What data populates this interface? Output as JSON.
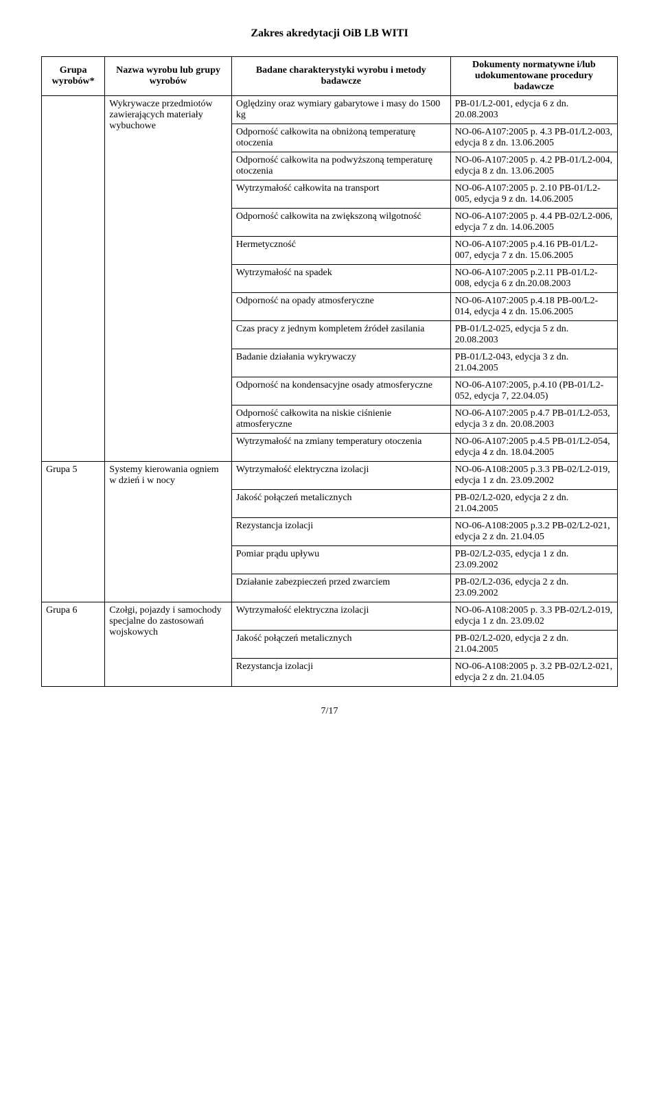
{
  "header": "Zakres akredytacji OiB LB WITI",
  "footer": "7/17",
  "columns": {
    "grupa": "Grupa wyrobów*",
    "nazwa": "Nazwa wyrobu lub grupy wyrobów",
    "badane": "Badane charakterystyki wyrobu i metody badawcze",
    "dok": "Dokumenty normatywne i/lub udokumentowane procedury badawcze"
  },
  "sections": [
    {
      "grupa": "",
      "nazwa": "Wykrywacze przedmiotów zawierających materiały wybuchowe",
      "rows": [
        {
          "left": "Oględziny oraz wymiary gabarytowe i masy do 1500 kg",
          "right": "PB-01/L2-001, edycja 6 z dn. 20.08.2003"
        },
        {
          "left": "Odporność całkowita na obniżoną temperaturę otoczenia",
          "right": "NO-06-A107:2005 p. 4.3 PB-01/L2-003, edycja 8 z dn. 13.06.2005"
        },
        {
          "left": "Odporność całkowita na podwyższoną temperaturę otoczenia",
          "right": "NO-06-A107:2005 p. 4.2 PB-01/L2-004, edycja 8 z dn. 13.06.2005"
        },
        {
          "left": "Wytrzymałość całkowita na transport",
          "right": "NO-06-A107:2005 p. 2.10 PB-01/L2-005, edycja 9 z dn. 14.06.2005"
        },
        {
          "left": "Odporność całkowita na zwiększoną wilgotność",
          "right": "NO-06-A107:2005 p. 4.4 PB-02/L2-006, edycja 7 z dn. 14.06.2005"
        },
        {
          "left": "Hermetyczność",
          "right": "NO-06-A107:2005 p.4.16 PB-01/L2-007, edycja 7 z dn. 15.06.2005"
        },
        {
          "left": "Wytrzymałość na spadek",
          "right": "NO-06-A107:2005 p.2.11 PB-01/L2-008, edycja 6 z dn.20.08.2003"
        },
        {
          "left": "Odporność na opady atmosferyczne",
          "right": "NO-06-A107:2005 p.4.18 PB-00/L2-014, edycja 4 z dn. 15.06.2005"
        },
        {
          "left": "Czas pracy z jednym kompletem źródeł zasilania",
          "right": "PB-01/L2-025, edycja 5 z dn. 20.08.2003"
        },
        {
          "left": "Badanie działania wykrywaczy",
          "right": "PB-01/L2-043, edycja 3 z dn. 21.04.2005"
        },
        {
          "left": "Odporność na kondensacyjne osady atmosferyczne",
          "right": "NO-06-A107:2005, p.4.10 (PB-01/L2-052, edycja 7, 22.04.05)"
        },
        {
          "left": "Odporność całkowita na niskie ciśnienie atmosferyczne",
          "right": "NO-06-A107:2005 p.4.7 PB-01/L2-053, edycja 3 z dn. 20.08.2003"
        },
        {
          "left": "Wytrzymałość na zmiany temperatury otoczenia",
          "right": "NO-06-A107:2005 p.4.5 PB-01/L2-054, edycja 4 z dn. 18.04.2005"
        }
      ]
    },
    {
      "grupa": "Grupa 5",
      "nazwa": "Systemy kierowania ogniem w dzień i w nocy",
      "rows": [
        {
          "left": "Wytrzymałość elektryczna izolacji",
          "right": "NO-06-A108:2005 p.3.3 PB-02/L2-019, edycja 1 z dn. 23.09.2002"
        },
        {
          "left": "Jakość połączeń metalicznych",
          "right": "PB-02/L2-020, edycja 2 z dn. 21.04.2005"
        },
        {
          "left": "Rezystancja izolacji",
          "right": "NO-06-A108:2005 p.3.2 PB-02/L2-021, edycja 2 z dn. 21.04.05"
        },
        {
          "left": "Pomiar prądu upływu",
          "right": "PB-02/L2-035, edycja 1 z dn. 23.09.2002"
        },
        {
          "left": "Działanie zabezpieczeń przed zwarciem",
          "right": "PB-02/L2-036, edycja 2 z dn. 23.09.2002"
        }
      ]
    },
    {
      "grupa": "Grupa 6",
      "nazwa": "Czołgi, pojazdy i samochody specjalne do zastosowań wojskowych",
      "rows": [
        {
          "left": "Wytrzymałość elektryczna izolacji",
          "right": "NO-06-A108:2005 p. 3.3 PB-02/L2-019, edycja 1 z dn. 23.09.02"
        },
        {
          "left": "Jakość połączeń metalicznych",
          "right": "PB-02/L2-020, edycja 2 z dn. 21.04.2005"
        },
        {
          "left": "Rezystancja izolacji",
          "right": "NO-06-A108:2005 p. 3.2 PB-02/L2-021, edycja 2 z dn. 21.04.05"
        }
      ]
    }
  ]
}
